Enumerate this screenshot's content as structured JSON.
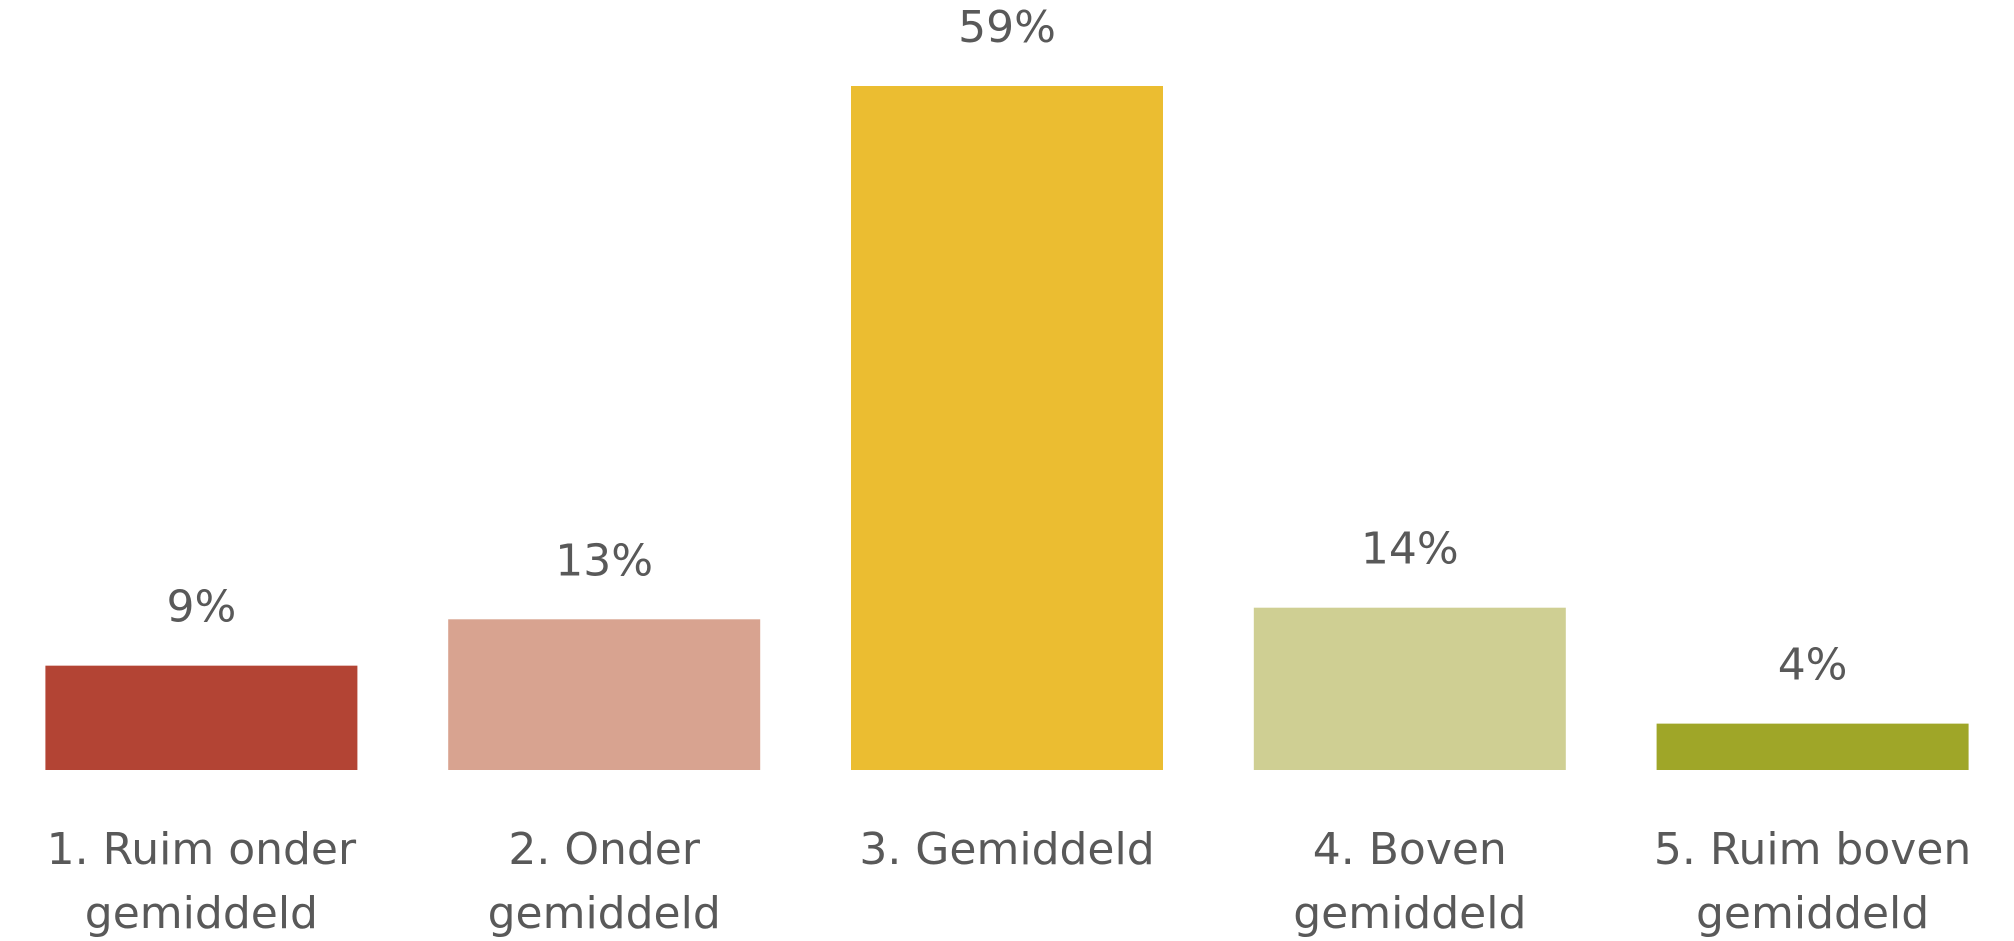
{
  "chart_data": {
    "type": "bar",
    "categories": [
      "1. Ruim onder gemiddeld",
      "2. Onder gemiddeld",
      "3. Gemiddeld",
      "4. Boven gemiddeld",
      "5. Ruim boven gemiddeld"
    ],
    "values": [
      9,
      13,
      59,
      14,
      4
    ],
    "value_labels": [
      "9%",
      "13%",
      "59%",
      "14%",
      "4%"
    ],
    "colors": [
      "#b34434",
      "#d8a390",
      "#ebbd31",
      "#cfcf93",
      "#9fa628"
    ]
  }
}
